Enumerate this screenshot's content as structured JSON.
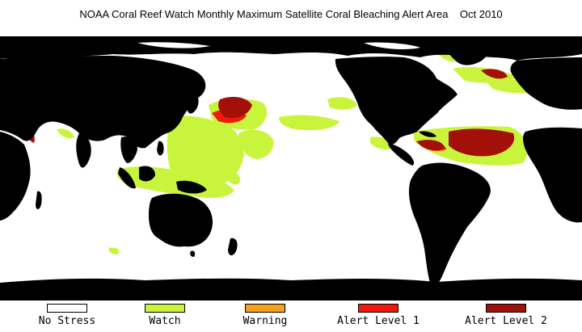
{
  "title": "NOAA Coral Reef Watch Monthly Maximum Satellite Coral Bleaching Alert Area    Oct 2010",
  "colors": {
    "land": "#000000",
    "no_stress": "#ffffff",
    "watch": "#c8f53c",
    "warning": "#f5a21e",
    "alert_level_1": "#f01a0c",
    "alert_level_2": "#a3100a"
  },
  "legend": [
    {
      "label": "No Stress",
      "color": "#ffffff"
    },
    {
      "label": "Watch",
      "color": "#c8f53c"
    },
    {
      "label": "Warning",
      "color": "#f5a21e"
    },
    {
      "label": "Alert Level 1",
      "color": "#f01a0c"
    },
    {
      "label": "Alert Level 2",
      "color": "#a3100a"
    }
  ]
}
